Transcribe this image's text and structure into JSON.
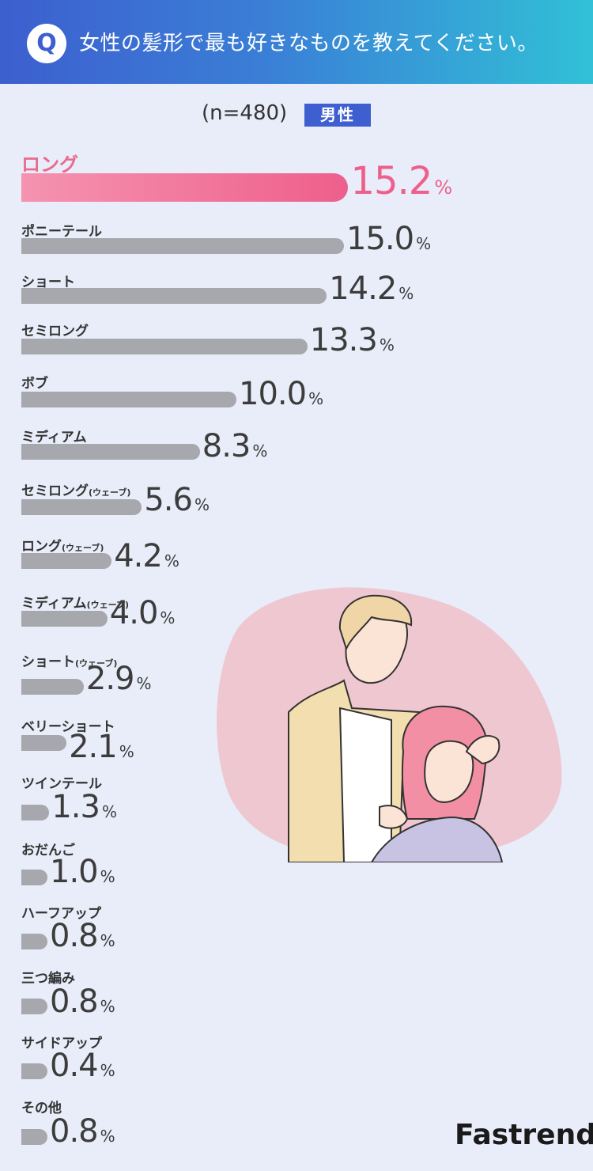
{
  "question": {
    "badge": "Q",
    "text": "女性の髪形で最も好きなものを教えてください。"
  },
  "sample": "(n=480)",
  "group_label": "男性",
  "brand": "Fastrend",
  "colors": {
    "highlight": "#ee5f8c",
    "bar": "#a6a8ad",
    "header_start": "#3d5fcf",
    "header_end": "#31c0d6"
  },
  "chart_data": {
    "type": "bar",
    "orientation": "horizontal",
    "unit": "%",
    "categories": [
      "ロング",
      "ポニーテール",
      "ショート",
      "セミロング",
      "ボブ",
      "ミディアム",
      "セミロング(ウェーブ)",
      "ロング(ウェーブ)",
      "ミディアム(ウェーブ)",
      "ショート(ウェーブ)",
      "ベリーショート",
      "ツインテール",
      "おだんご",
      "ハーフアップ",
      "三つ編み",
      "サイドアップ",
      "その他"
    ],
    "values": [
      15.2,
      15.0,
      14.2,
      13.3,
      10.0,
      8.3,
      5.6,
      4.2,
      4.0,
      2.9,
      2.1,
      1.3,
      1.0,
      0.8,
      0.8,
      0.4,
      0.8
    ],
    "value_labels": [
      "15.2",
      "15.0",
      "14.2",
      "13.3",
      "10.0",
      "8.3",
      "5.6",
      "4.2",
      "4.0",
      "2.9",
      "2.1",
      "1.3",
      "1.0",
      "0.8",
      "0.8",
      "0.4",
      "0.8"
    ],
    "highlight_index": 0
  }
}
